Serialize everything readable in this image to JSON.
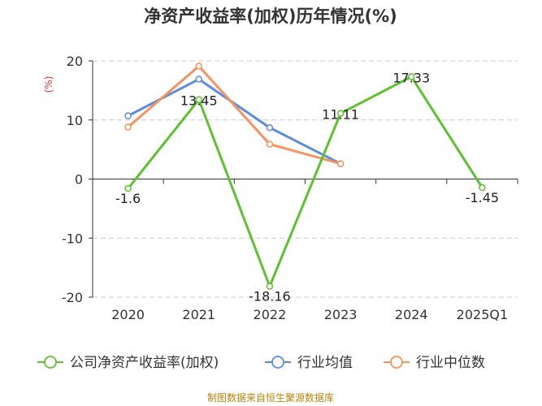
{
  "colors": {
    "company": "#5cc22e",
    "avg": "#5b8ce0",
    "median": "#f5925e",
    "unit": "#e8322c",
    "source": "#b8860b",
    "grid": "#cccccc",
    "axis": "#333333"
  },
  "chart_data": {
    "type": "line",
    "title": "净资产收益率(加权)历年情况(%)",
    "ylabel": "(%)",
    "categories": [
      "2020",
      "2021",
      "2022",
      "2023",
      "2024",
      "2025Q1"
    ],
    "ylim": [
      -20,
      20
    ],
    "yticks": [
      20,
      10,
      0,
      -10,
      -20
    ],
    "grid": "horizontal-dashed",
    "legend_position": "bottom",
    "series": [
      {
        "name": "公司净资产收益率(加权)",
        "values": [
          -1.6,
          13.45,
          -18.16,
          11.11,
          17.33,
          -1.45
        ],
        "labels": [
          "-1.6",
          "13.45",
          "-18.16",
          "11.11",
          "17.33",
          "-1.45"
        ],
        "color_key": "company"
      },
      {
        "name": "行业均值",
        "values": [
          10.7,
          16.9,
          8.7,
          2.6,
          null,
          null
        ],
        "color_key": "avg"
      },
      {
        "name": "行业中位数",
        "values": [
          8.8,
          19.1,
          5.9,
          2.6,
          null,
          null
        ],
        "color_key": "median"
      }
    ]
  },
  "source": "制图数据来自恒生聚源数据库"
}
